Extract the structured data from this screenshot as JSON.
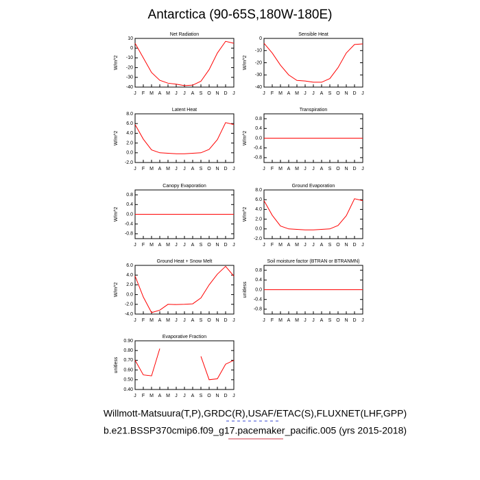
{
  "title": "Antarctica (90-65S,180W-180E)",
  "footnotes": [
    "Willmott-Matsuura(T,P),GRDC(R),USAF/ETAC(S),FLUXNET(LHF,GPP)",
    "b.e21.BSSP370cmip6.f09_g17.pacemaker_pacific.005 (yrs 2015-2018)"
  ],
  "chart_data": [
    {
      "type": "line",
      "title": "Net Radiation",
      "y_label": "W/m^2",
      "color": "#ff0000",
      "categories": [
        "J",
        "F",
        "M",
        "A",
        "M",
        "J",
        "J",
        "A",
        "S",
        "O",
        "N",
        "D",
        "J"
      ],
      "values": [
        5,
        -10,
        -25,
        -33,
        -36,
        -37,
        -38.5,
        -38,
        -34,
        -22,
        -5,
        7,
        5
      ],
      "ylim": [
        -40,
        10
      ],
      "yticks": [
        -40,
        -30,
        -20,
        -10,
        0,
        10
      ]
    },
    {
      "type": "line",
      "title": "Sensible Heat",
      "y_label": "W/m^2",
      "color": "#ff0000",
      "categories": [
        "J",
        "F",
        "M",
        "A",
        "M",
        "J",
        "J",
        "A",
        "S",
        "O",
        "N",
        "D",
        "J"
      ],
      "values": [
        -4,
        -12,
        -22,
        -30,
        -34.5,
        -35,
        -36,
        -36,
        -33,
        -24,
        -12,
        -5,
        -4.5
      ],
      "ylim": [
        -40,
        0
      ],
      "yticks": [
        -40,
        -30,
        -20,
        -10,
        0
      ]
    },
    {
      "type": "line",
      "title": "Latent Heat",
      "y_label": "W/m^2",
      "color": "#ff0000",
      "categories": [
        "J",
        "F",
        "M",
        "A",
        "M",
        "J",
        "J",
        "A",
        "S",
        "O",
        "N",
        "D",
        "J"
      ],
      "values": [
        5.8,
        2.8,
        0.6,
        0,
        -0.1,
        -0.2,
        -0.2,
        -0.1,
        0,
        0.7,
        2.7,
        6.2,
        5.8
      ],
      "ylim": [
        -2,
        8
      ],
      "yticks": [
        {
          "value": -2,
          "label": "-2.0"
        },
        {
          "value": 0,
          "label": "0.0"
        },
        {
          "value": 2,
          "label": "2.0"
        },
        {
          "value": 4,
          "label": "4.0"
        },
        {
          "value": 6,
          "label": "6.0"
        },
        {
          "value": 8,
          "label": "8.0"
        }
      ]
    },
    {
      "type": "line",
      "title": "Transpiration",
      "y_label": "W/m^2",
      "color": "#ff0000",
      "categories": [
        "J",
        "F",
        "M",
        "A",
        "M",
        "J",
        "J",
        "A",
        "S",
        "O",
        "N",
        "D",
        "J"
      ],
      "values": [
        0,
        0,
        0,
        0,
        0,
        0,
        0,
        0,
        0,
        0,
        0,
        0,
        0
      ],
      "ylim": [
        -1,
        1
      ],
      "yticks": [
        -0.8,
        -0.4,
        {
          "value": 0,
          "label": "0.0"
        },
        0.4,
        0.8
      ]
    },
    {
      "type": "line",
      "title": "Canopy Evaporation",
      "y_label": "W/m^2",
      "color": "#ff0000",
      "categories": [
        "J",
        "F",
        "M",
        "A",
        "M",
        "J",
        "J",
        "A",
        "S",
        "O",
        "N",
        "D",
        "J"
      ],
      "values": [
        0,
        0,
        0,
        0,
        0,
        0,
        0,
        0,
        0,
        0,
        0,
        0,
        0
      ],
      "ylim": [
        -1,
        1
      ],
      "yticks": [
        -0.8,
        -0.4,
        {
          "value": 0,
          "label": "0.0"
        },
        0.4,
        0.8
      ]
    },
    {
      "type": "line",
      "title": "Ground Evaporation",
      "y_label": "W/m^2",
      "color": "#ff0000",
      "categories": [
        "J",
        "F",
        "M",
        "A",
        "M",
        "J",
        "J",
        "A",
        "S",
        "O",
        "N",
        "D",
        "J"
      ],
      "values": [
        5.8,
        2.8,
        0.6,
        0,
        -0.1,
        -0.2,
        -0.2,
        -0.1,
        0,
        0.7,
        2.7,
        6.2,
        5.8
      ],
      "ylim": [
        -2,
        8
      ],
      "yticks": [
        {
          "value": -2,
          "label": "-2.0"
        },
        {
          "value": 0,
          "label": "0.0"
        },
        {
          "value": 2,
          "label": "2.0"
        },
        {
          "value": 4,
          "label": "4.0"
        },
        {
          "value": 6,
          "label": "6.0"
        },
        {
          "value": 8,
          "label": "8.0"
        }
      ]
    },
    {
      "type": "line",
      "title": "Ground Heat + Snow Melt",
      "y_label": "W/m^2",
      "color": "#ff0000",
      "categories": [
        "J",
        "F",
        "M",
        "A",
        "M",
        "J",
        "J",
        "A",
        "S",
        "O",
        "N",
        "D",
        "J"
      ],
      "values": [
        3.8,
        -0.5,
        -3.7,
        -3.2,
        -2,
        -2.05,
        -2,
        -1.9,
        -0.7,
        2,
        4.2,
        5.8,
        3.8
      ],
      "ylim": [
        -4,
        6
      ],
      "yticks": [
        {
          "value": -4,
          "label": "-4.0"
        },
        {
          "value": -2,
          "label": "-2.0"
        },
        {
          "value": 0,
          "label": "0.0"
        },
        {
          "value": 2,
          "label": "2.0"
        },
        {
          "value": 4,
          "label": "4.0"
        },
        {
          "value": 6,
          "label": "6.0"
        }
      ]
    },
    {
      "type": "line",
      "title": "Soil moisture factor (BTRAN or BTRANMN)",
      "y_label": "unitless",
      "color": "#ff0000",
      "categories": [
        "J",
        "F",
        "M",
        "A",
        "M",
        "J",
        "J",
        "A",
        "S",
        "O",
        "N",
        "D",
        "J"
      ],
      "values": [
        0,
        0,
        0,
        0,
        0,
        0,
        0,
        0,
        0,
        0,
        0,
        0,
        0
      ],
      "ylim": [
        -1,
        1
      ],
      "yticks": [
        -0.8,
        -0.4,
        {
          "value": 0,
          "label": "0.0"
        },
        0.4,
        0.8
      ]
    },
    {
      "type": "line",
      "title": "Evaporative Fraction",
      "y_label": "unitless",
      "color": "#ff0000",
      "categories": [
        "J",
        "F",
        "M",
        "A",
        "M",
        "J",
        "J",
        "A",
        "S",
        "O",
        "N",
        "D",
        "J"
      ],
      "values": [
        0.7,
        0.55,
        0.54,
        0.82,
        null,
        null,
        null,
        null,
        0.74,
        0.5,
        0.51,
        0.66,
        0.7
      ],
      "ylim": [
        0.4,
        0.9
      ],
      "yticks": [
        {
          "value": 0.4,
          "label": "0.40"
        },
        {
          "value": 0.5,
          "label": "0.50"
        },
        {
          "value": 0.6,
          "label": "0.60"
        },
        {
          "value": 0.7,
          "label": "0.70"
        },
        {
          "value": 0.8,
          "label": "0.80"
        },
        {
          "value": 0.9,
          "label": "0.90"
        }
      ]
    }
  ]
}
